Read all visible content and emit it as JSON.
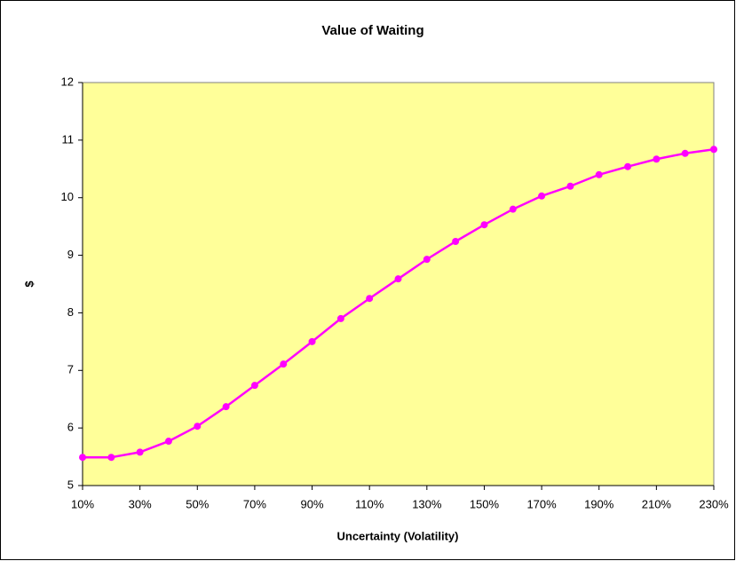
{
  "chart_data": {
    "type": "line",
    "title": "Value of Waiting",
    "xlabel": "Uncertainty (Volatility)",
    "ylabel": "$",
    "x": [
      10,
      20,
      30,
      40,
      50,
      60,
      70,
      80,
      90,
      100,
      110,
      120,
      130,
      140,
      150,
      160,
      170,
      180,
      190,
      200,
      210,
      220,
      230
    ],
    "series": [
      {
        "name": "Value of Waiting",
        "color": "#ff00ff",
        "values": [
          5.49,
          5.49,
          5.58,
          5.77,
          6.03,
          6.37,
          6.74,
          7.11,
          7.5,
          7.9,
          8.25,
          8.59,
          8.93,
          9.24,
          9.53,
          9.8,
          10.03,
          10.2,
          10.4,
          10.54,
          10.67,
          10.77,
          10.84
        ]
      }
    ],
    "xlim": [
      10,
      230
    ],
    "xticks": [
      {
        "value": 10,
        "label": "10%"
      },
      {
        "value": 30,
        "label": "30%"
      },
      {
        "value": 50,
        "label": "50%"
      },
      {
        "value": 70,
        "label": "70%"
      },
      {
        "value": 90,
        "label": "90%"
      },
      {
        "value": 110,
        "label": "110%"
      },
      {
        "value": 130,
        "label": "130%"
      },
      {
        "value": 150,
        "label": "150%"
      },
      {
        "value": 170,
        "label": "170%"
      },
      {
        "value": 190,
        "label": "190%"
      },
      {
        "value": 210,
        "label": "210%"
      },
      {
        "value": 230,
        "label": "230%"
      }
    ],
    "ylim": [
      5,
      12
    ],
    "yticks": [
      5,
      6,
      7,
      8,
      9,
      10,
      11,
      12
    ],
    "grid": false,
    "plot_background": "#ffff99"
  }
}
